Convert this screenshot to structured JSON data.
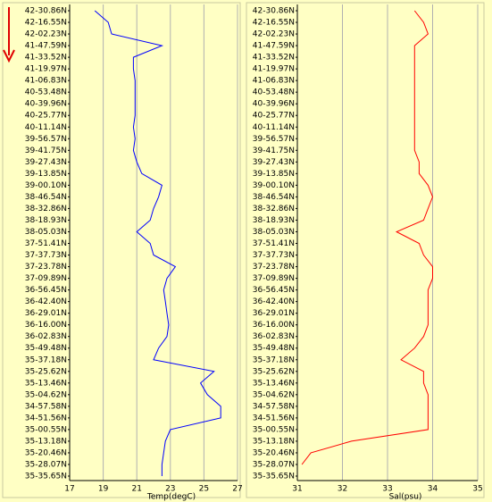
{
  "chart_data": [
    {
      "type": "line",
      "x_label": "Temp(degC)",
      "color": "#0000ff",
      "categories": [
        "42-30.86N",
        "42-16.55N",
        "42-02.23N",
        "41-47.59N",
        "41-33.52N",
        "41-19.97N",
        "41-06.83N",
        "40-53.48N",
        "40-39.96N",
        "40-25.77N",
        "40-11.14N",
        "39-56.57N",
        "39-41.75N",
        "39-27.43N",
        "39-13.85N",
        "39-00.10N",
        "38-46.54N",
        "38-32.86N",
        "38-18.93N",
        "38-05.03N",
        "37-51.41N",
        "37-37.73N",
        "37-23.78N",
        "37-09.89N",
        "36-56.45N",
        "36-42.40N",
        "36-29.01N",
        "36-16.00N",
        "36-02.83N",
        "35-49.48N",
        "35-37.18N",
        "35-25.62N",
        "35-13.46N",
        "35-04.62N",
        "34-57.58N",
        "34-51.56N",
        "35-00.55N",
        "35-13.18N",
        "35-20.46N",
        "35-28.07N",
        "35-35.65N"
      ],
      "values": [
        18.5,
        19.3,
        19.5,
        22.5,
        20.8,
        20.8,
        20.9,
        20.9,
        20.9,
        20.9,
        20.8,
        20.9,
        20.8,
        21.0,
        21.3,
        22.5,
        22.3,
        22.0,
        21.8,
        21.0,
        21.8,
        22.0,
        23.3,
        22.8,
        22.6,
        22.7,
        22.8,
        22.9,
        22.8,
        22.3,
        22.0,
        25.6,
        24.8,
        25.2,
        26.0,
        26.0,
        23.0,
        22.7,
        22.6,
        22.5,
        22.5
      ],
      "xlim": [
        17,
        27
      ],
      "xticks": [
        17,
        19,
        21,
        23,
        25,
        27
      ],
      "grid": true
    },
    {
      "type": "line",
      "x_label": "Sal(psu)",
      "color": "#ff0000",
      "categories": [
        "42-30.86N",
        "42-16.55N",
        "42-02.23N",
        "41-47.59N",
        "41-33.52N",
        "41-19.97N",
        "41-06.83N",
        "40-53.48N",
        "40-39.96N",
        "40-25.77N",
        "40-11.14N",
        "39-56.57N",
        "39-41.75N",
        "39-27.43N",
        "39-13.85N",
        "39-00.10N",
        "38-46.54N",
        "38-32.86N",
        "38-18.93N",
        "38-05.03N",
        "37-51.41N",
        "37-37.73N",
        "37-23.78N",
        "37-09.89N",
        "36-56.45N",
        "36-42.40N",
        "36-29.01N",
        "36-16.00N",
        "36-02.83N",
        "35-49.48N",
        "35-37.18N",
        "35-25.62N",
        "35-13.46N",
        "35-04.62N",
        "34-57.58N",
        "34-51.56N",
        "35-00.55N",
        "35-13.18N",
        "35-20.46N",
        "35-28.07N",
        "35-35.65N"
      ],
      "values": [
        33.6,
        33.8,
        33.9,
        33.6,
        33.6,
        33.6,
        33.6,
        33.6,
        33.6,
        33.6,
        33.6,
        33.6,
        33.6,
        33.7,
        33.7,
        33.9,
        34.0,
        33.9,
        33.8,
        33.2,
        33.7,
        33.8,
        34.0,
        34.0,
        33.9,
        33.9,
        33.9,
        33.9,
        33.8,
        33.6,
        33.3,
        33.8,
        33.8,
        33.9,
        33.9,
        33.9,
        33.9,
        32.2,
        31.3,
        31.1,
        null
      ],
      "xlim": [
        31,
        35
      ],
      "xticks": [
        31,
        32,
        33,
        34,
        35
      ],
      "grid": true
    }
  ]
}
